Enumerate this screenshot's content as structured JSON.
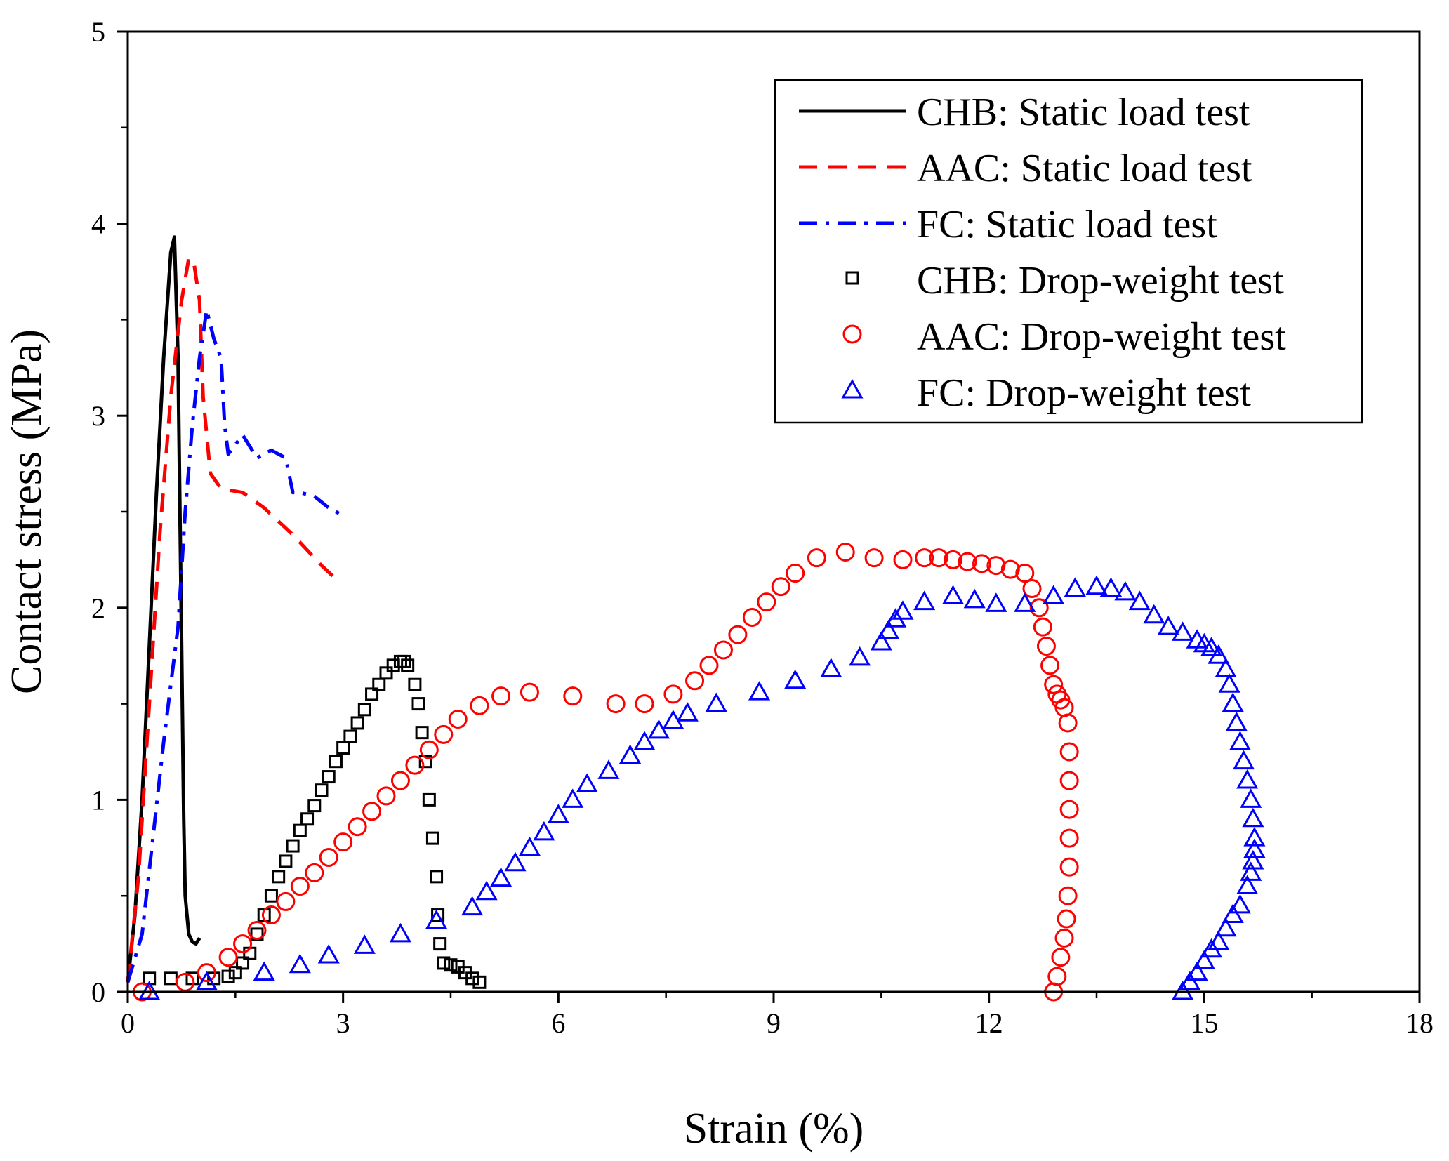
{
  "chart_data": {
    "type": "scatter",
    "title": "",
    "xlabel": "Strain (%)",
    "ylabel": "Contact stress (MPa)",
    "xlim": [
      0,
      18
    ],
    "ylim": [
      0,
      5
    ],
    "xticks": [
      "0",
      "3",
      "6",
      "9",
      "12",
      "15",
      "18"
    ],
    "yticks": [
      "0",
      "1",
      "2",
      "3",
      "4",
      "5"
    ],
    "legend_position": "top-right",
    "series": [
      {
        "name": "CHB: Static load test",
        "kind": "line",
        "style": "solid",
        "color": "#000000",
        "x": [
          0,
          0.1,
          0.2,
          0.3,
          0.4,
          0.5,
          0.6,
          0.65,
          0.7,
          0.75,
          0.78,
          0.8,
          0.85,
          0.9,
          0.95,
          1.0
        ],
        "y": [
          0.05,
          0.4,
          1.0,
          1.8,
          2.6,
          3.3,
          3.85,
          3.93,
          3.3,
          1.8,
          0.9,
          0.5,
          0.3,
          0.26,
          0.25,
          0.28
        ]
      },
      {
        "name": "AAC: Static load test",
        "kind": "line",
        "style": "dashed",
        "color": "#ff0000",
        "x": [
          0,
          0.15,
          0.3,
          0.45,
          0.6,
          0.75,
          0.85,
          0.92,
          1.0,
          1.05,
          1.15,
          1.3,
          1.6,
          1.9,
          2.1,
          2.3,
          2.5,
          2.7,
          2.9
        ],
        "y": [
          0.05,
          0.6,
          1.5,
          2.4,
          3.1,
          3.6,
          3.82,
          3.8,
          3.6,
          3.1,
          2.7,
          2.62,
          2.6,
          2.52,
          2.45,
          2.38,
          2.3,
          2.22,
          2.15
        ]
      },
      {
        "name": "FC: Static load test",
        "kind": "line",
        "style": "dashdot",
        "color": "#0000ff",
        "x": [
          0,
          0.2,
          0.35,
          0.5,
          0.6,
          0.7,
          0.75,
          0.8,
          0.9,
          1.0,
          1.1,
          1.2,
          1.3,
          1.35,
          1.4,
          1.5,
          1.6,
          1.8,
          2.0,
          2.2,
          2.3,
          2.4,
          2.6,
          2.8,
          3.0
        ],
        "y": [
          0.05,
          0.3,
          0.8,
          1.3,
          1.6,
          1.9,
          2.2,
          2.5,
          2.95,
          3.3,
          3.55,
          3.4,
          3.3,
          2.95,
          2.8,
          2.85,
          2.9,
          2.78,
          2.82,
          2.78,
          2.6,
          2.6,
          2.58,
          2.52,
          2.48
        ]
      },
      {
        "name": "CHB: Drop-weight test",
        "kind": "markers",
        "marker": "square",
        "color": "#000000",
        "x": [
          0.3,
          0.6,
          0.9,
          1.2,
          1.4,
          1.5,
          1.6,
          1.7,
          1.8,
          1.9,
          2.0,
          2.1,
          2.2,
          2.3,
          2.4,
          2.5,
          2.6,
          2.7,
          2.8,
          2.9,
          3.0,
          3.1,
          3.2,
          3.3,
          3.4,
          3.5,
          3.6,
          3.7,
          3.8,
          3.85,
          3.9,
          4.0,
          4.05,
          4.1,
          4.15,
          4.2,
          4.25,
          4.3,
          4.32,
          4.35,
          4.4,
          4.5,
          4.6,
          4.7,
          4.8,
          4.9
        ],
        "y": [
          0.07,
          0.07,
          0.07,
          0.07,
          0.08,
          0.1,
          0.15,
          0.2,
          0.3,
          0.4,
          0.5,
          0.6,
          0.68,
          0.76,
          0.84,
          0.9,
          0.97,
          1.05,
          1.12,
          1.2,
          1.27,
          1.33,
          1.4,
          1.47,
          1.55,
          1.6,
          1.66,
          1.7,
          1.72,
          1.72,
          1.7,
          1.6,
          1.5,
          1.35,
          1.2,
          1.0,
          0.8,
          0.6,
          0.4,
          0.25,
          0.15,
          0.14,
          0.13,
          0.1,
          0.07,
          0.05
        ]
      },
      {
        "name": "AAC: Drop-weight test",
        "kind": "markers",
        "marker": "circle",
        "color": "#ff0000",
        "x": [
          0.2,
          0.8,
          1.1,
          1.4,
          1.6,
          1.8,
          2.0,
          2.2,
          2.4,
          2.6,
          2.8,
          3.0,
          3.2,
          3.4,
          3.6,
          3.8,
          4.0,
          4.2,
          4.4,
          4.6,
          4.9,
          5.2,
          5.6,
          6.2,
          6.8,
          7.2,
          7.6,
          7.9,
          8.1,
          8.3,
          8.5,
          8.7,
          8.9,
          9.1,
          9.3,
          9.6,
          10.0,
          10.4,
          10.8,
          11.1,
          11.3,
          11.5,
          11.7,
          11.9,
          12.1,
          12.3,
          12.5,
          12.6,
          12.7,
          12.75,
          12.8,
          12.85,
          12.9,
          12.95,
          13.0,
          13.05,
          13.1,
          13.12,
          13.12,
          13.12,
          13.12,
          13.12,
          13.1,
          13.08,
          13.05,
          13.0,
          12.95,
          12.9
        ],
        "y": [
          0.0,
          0.05,
          0.1,
          0.18,
          0.25,
          0.32,
          0.4,
          0.47,
          0.55,
          0.62,
          0.7,
          0.78,
          0.86,
          0.94,
          1.02,
          1.1,
          1.18,
          1.26,
          1.34,
          1.42,
          1.49,
          1.54,
          1.56,
          1.54,
          1.5,
          1.5,
          1.55,
          1.62,
          1.7,
          1.78,
          1.86,
          1.95,
          2.03,
          2.11,
          2.18,
          2.26,
          2.29,
          2.26,
          2.25,
          2.26,
          2.26,
          2.25,
          2.24,
          2.23,
          2.22,
          2.2,
          2.18,
          2.1,
          2.0,
          1.9,
          1.8,
          1.7,
          1.6,
          1.55,
          1.52,
          1.48,
          1.4,
          1.25,
          1.1,
          0.95,
          0.8,
          0.65,
          0.5,
          0.38,
          0.28,
          0.18,
          0.08,
          0.0
        ]
      },
      {
        "name": "FC: Drop-weight test",
        "kind": "markers",
        "marker": "triangle",
        "color": "#0000ff",
        "x": [
          0.3,
          1.1,
          1.9,
          2.4,
          2.8,
          3.3,
          3.8,
          4.3,
          4.8,
          5.0,
          5.2,
          5.4,
          5.6,
          5.8,
          6.0,
          6.2,
          6.4,
          6.7,
          7.0,
          7.2,
          7.4,
          7.6,
          7.8,
          8.2,
          8.8,
          9.3,
          9.8,
          10.2,
          10.5,
          10.6,
          10.7,
          10.8,
          11.1,
          11.5,
          11.8,
          12.1,
          12.5,
          12.9,
          13.2,
          13.5,
          13.7,
          13.9,
          14.1,
          14.3,
          14.5,
          14.7,
          14.9,
          15.0,
          15.1,
          15.2,
          15.3,
          15.35,
          15.4,
          15.45,
          15.5,
          15.55,
          15.6,
          15.65,
          15.68,
          15.7,
          15.7,
          15.68,
          15.65,
          15.6,
          15.5,
          15.4,
          15.3,
          15.2,
          15.1,
          15.0,
          14.9,
          14.8,
          14.7
        ],
        "y": [
          0.0,
          0.05,
          0.1,
          0.14,
          0.19,
          0.24,
          0.3,
          0.37,
          0.44,
          0.52,
          0.59,
          0.67,
          0.75,
          0.83,
          0.92,
          1.0,
          1.08,
          1.15,
          1.23,
          1.3,
          1.36,
          1.41,
          1.45,
          1.5,
          1.56,
          1.62,
          1.68,
          1.74,
          1.82,
          1.88,
          1.94,
          1.98,
          2.03,
          2.06,
          2.04,
          2.02,
          2.02,
          2.06,
          2.1,
          2.11,
          2.1,
          2.08,
          2.03,
          1.96,
          1.9,
          1.87,
          1.83,
          1.81,
          1.79,
          1.75,
          1.68,
          1.6,
          1.5,
          1.4,
          1.3,
          1.2,
          1.1,
          1.0,
          0.9,
          0.8,
          0.74,
          0.68,
          0.62,
          0.55,
          0.45,
          0.4,
          0.33,
          0.26,
          0.22,
          0.16,
          0.1,
          0.05,
          0.0
        ]
      }
    ]
  }
}
